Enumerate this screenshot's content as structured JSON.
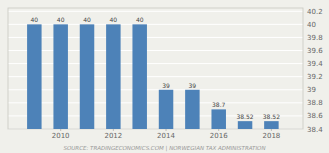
{
  "chart_data": {
    "type": "bar",
    "x": [
      2009,
      2010,
      2011,
      2012,
      2013,
      2014,
      2015,
      2016,
      2017,
      2018
    ],
    "values": [
      40,
      40,
      40,
      40,
      40,
      39,
      39,
      38.7,
      38.52,
      38.52
    ],
    "color": "#4d82b8",
    "data_labels": true,
    "ylim": [
      38.4,
      40.25
    ],
    "yticks": [
      38.4,
      38.6,
      38.8,
      39,
      39.2,
      39.4,
      39.6,
      39.8,
      40,
      40.2
    ],
    "xlim": [
      2008,
      2019.2
    ],
    "xticks": [
      2010,
      2012,
      2014,
      2016,
      2018
    ],
    "grid": true,
    "annotations": [
      "SOURCE: TRADINGECONOMICS.COM | NORWEGIAN TAX ADMINISTRATION"
    ]
  }
}
